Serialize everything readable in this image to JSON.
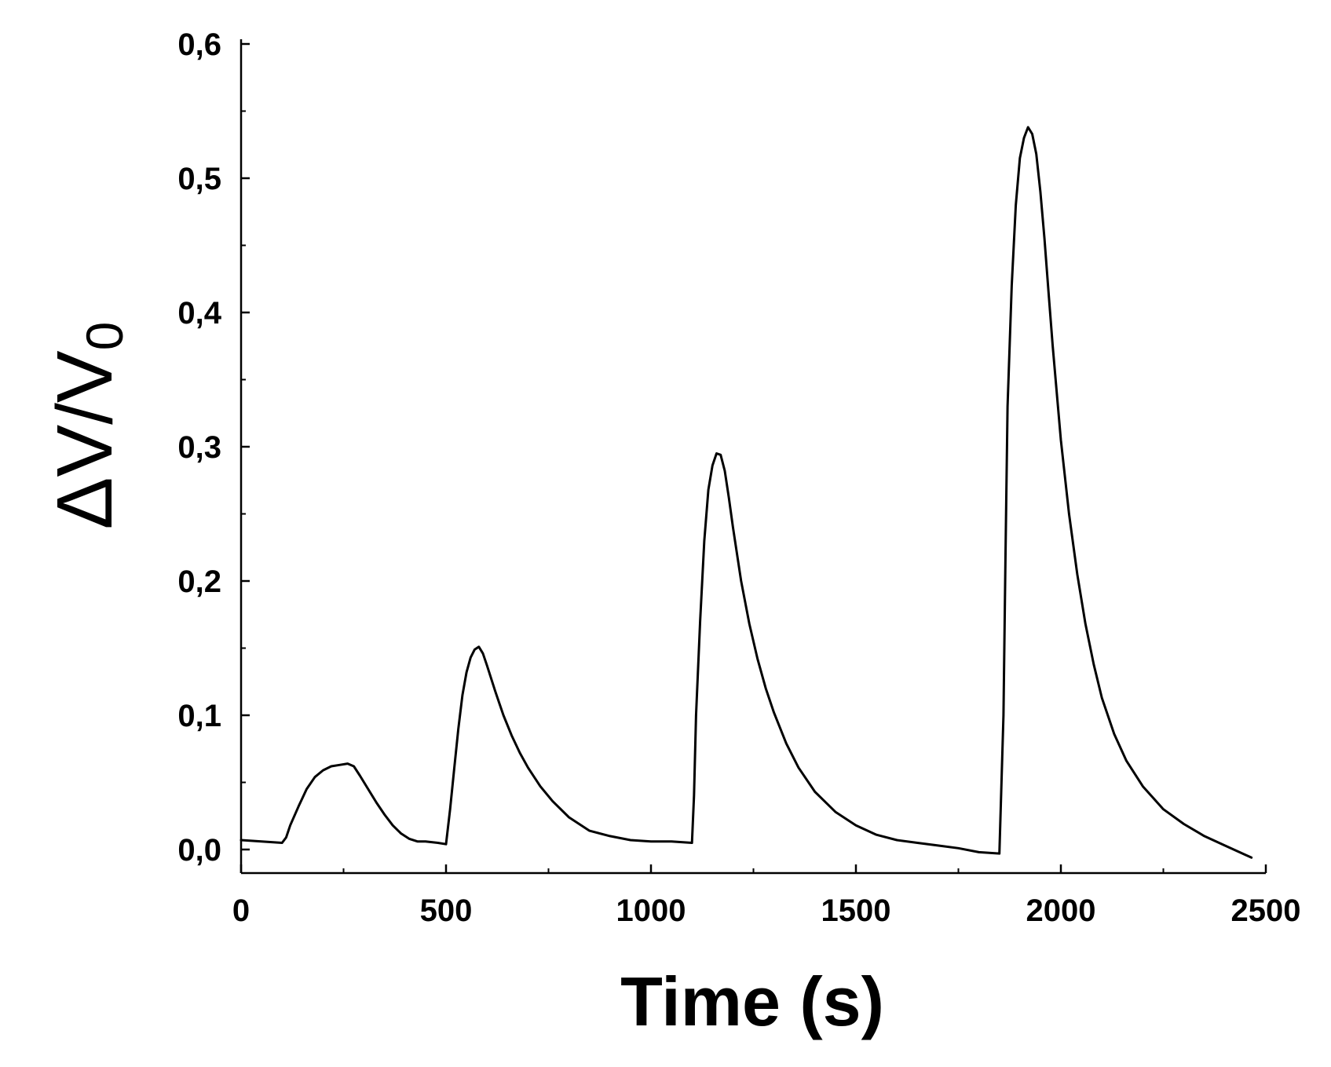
{
  "chart_data": {
    "type": "line",
    "title": "",
    "xlabel": "Time (s)",
    "ylabel": {
      "main": "ΔV/V",
      "subscript": "0"
    },
    "xlim": [
      0,
      2500
    ],
    "ylim": [
      -0.02,
      0.6
    ],
    "x_ticks": [
      0,
      500,
      1000,
      1500,
      2000,
      2500
    ],
    "x_tick_labels": [
      "0",
      "500",
      "1000",
      "1500",
      "2000",
      "2500"
    ],
    "y_ticks": [
      0.0,
      0.1,
      0.2,
      0.3,
      0.4,
      0.5,
      0.6
    ],
    "y_tick_labels": [
      "0,0",
      "0,1",
      "0,2",
      "0,3",
      "0,4",
      "0,5",
      "0,6"
    ],
    "grid": false,
    "legend": "none",
    "line_color": "#000000",
    "series": [
      {
        "x": [
          0,
          50,
          100,
          110,
          120,
          140,
          160,
          180,
          200,
          220,
          240,
          260,
          275,
          290,
          310,
          330,
          350,
          370,
          390,
          410,
          430,
          450,
          480,
          500,
          510,
          520,
          530,
          540,
          550,
          560,
          570,
          580,
          590,
          600,
          620,
          640,
          660,
          680,
          700,
          730,
          760,
          800,
          850,
          900,
          950,
          1000,
          1050,
          1100,
          1105,
          1110,
          1120,
          1130,
          1140,
          1150,
          1160,
          1170,
          1180,
          1190,
          1200,
          1220,
          1240,
          1260,
          1280,
          1300,
          1330,
          1360,
          1400,
          1450,
          1500,
          1550,
          1600,
          1650,
          1700,
          1750,
          1800,
          1850,
          1860,
          1865,
          1870,
          1880,
          1890,
          1900,
          1910,
          1920,
          1930,
          1940,
          1950,
          1960,
          1970,
          1980,
          2000,
          2020,
          2040,
          2060,
          2080,
          2100,
          2130,
          2160,
          2200,
          2250,
          2300,
          2350,
          2400,
          2450,
          2465
        ],
        "y": [
          0.007,
          0.006,
          0.005,
          0.009,
          0.018,
          0.032,
          0.045,
          0.054,
          0.059,
          0.062,
          0.063,
          0.064,
          0.062,
          0.055,
          0.045,
          0.035,
          0.026,
          0.018,
          0.012,
          0.008,
          0.006,
          0.006,
          0.005,
          0.004,
          0.03,
          0.06,
          0.09,
          0.115,
          0.132,
          0.143,
          0.149,
          0.151,
          0.146,
          0.137,
          0.118,
          0.1,
          0.085,
          0.072,
          0.061,
          0.047,
          0.036,
          0.024,
          0.014,
          0.01,
          0.007,
          0.006,
          0.006,
          0.005,
          0.04,
          0.1,
          0.17,
          0.23,
          0.268,
          0.286,
          0.295,
          0.294,
          0.282,
          0.262,
          0.24,
          0.2,
          0.168,
          0.142,
          0.12,
          0.102,
          0.079,
          0.061,
          0.043,
          0.028,
          0.018,
          0.011,
          0.007,
          0.005,
          0.003,
          0.001,
          -0.002,
          -0.003,
          0.1,
          0.22,
          0.33,
          0.42,
          0.48,
          0.515,
          0.53,
          0.538,
          0.533,
          0.518,
          0.49,
          0.455,
          0.415,
          0.375,
          0.305,
          0.25,
          0.205,
          0.168,
          0.138,
          0.113,
          0.086,
          0.066,
          0.047,
          0.03,
          0.019,
          0.01,
          0.003,
          -0.004,
          -0.006
        ]
      }
    ]
  }
}
